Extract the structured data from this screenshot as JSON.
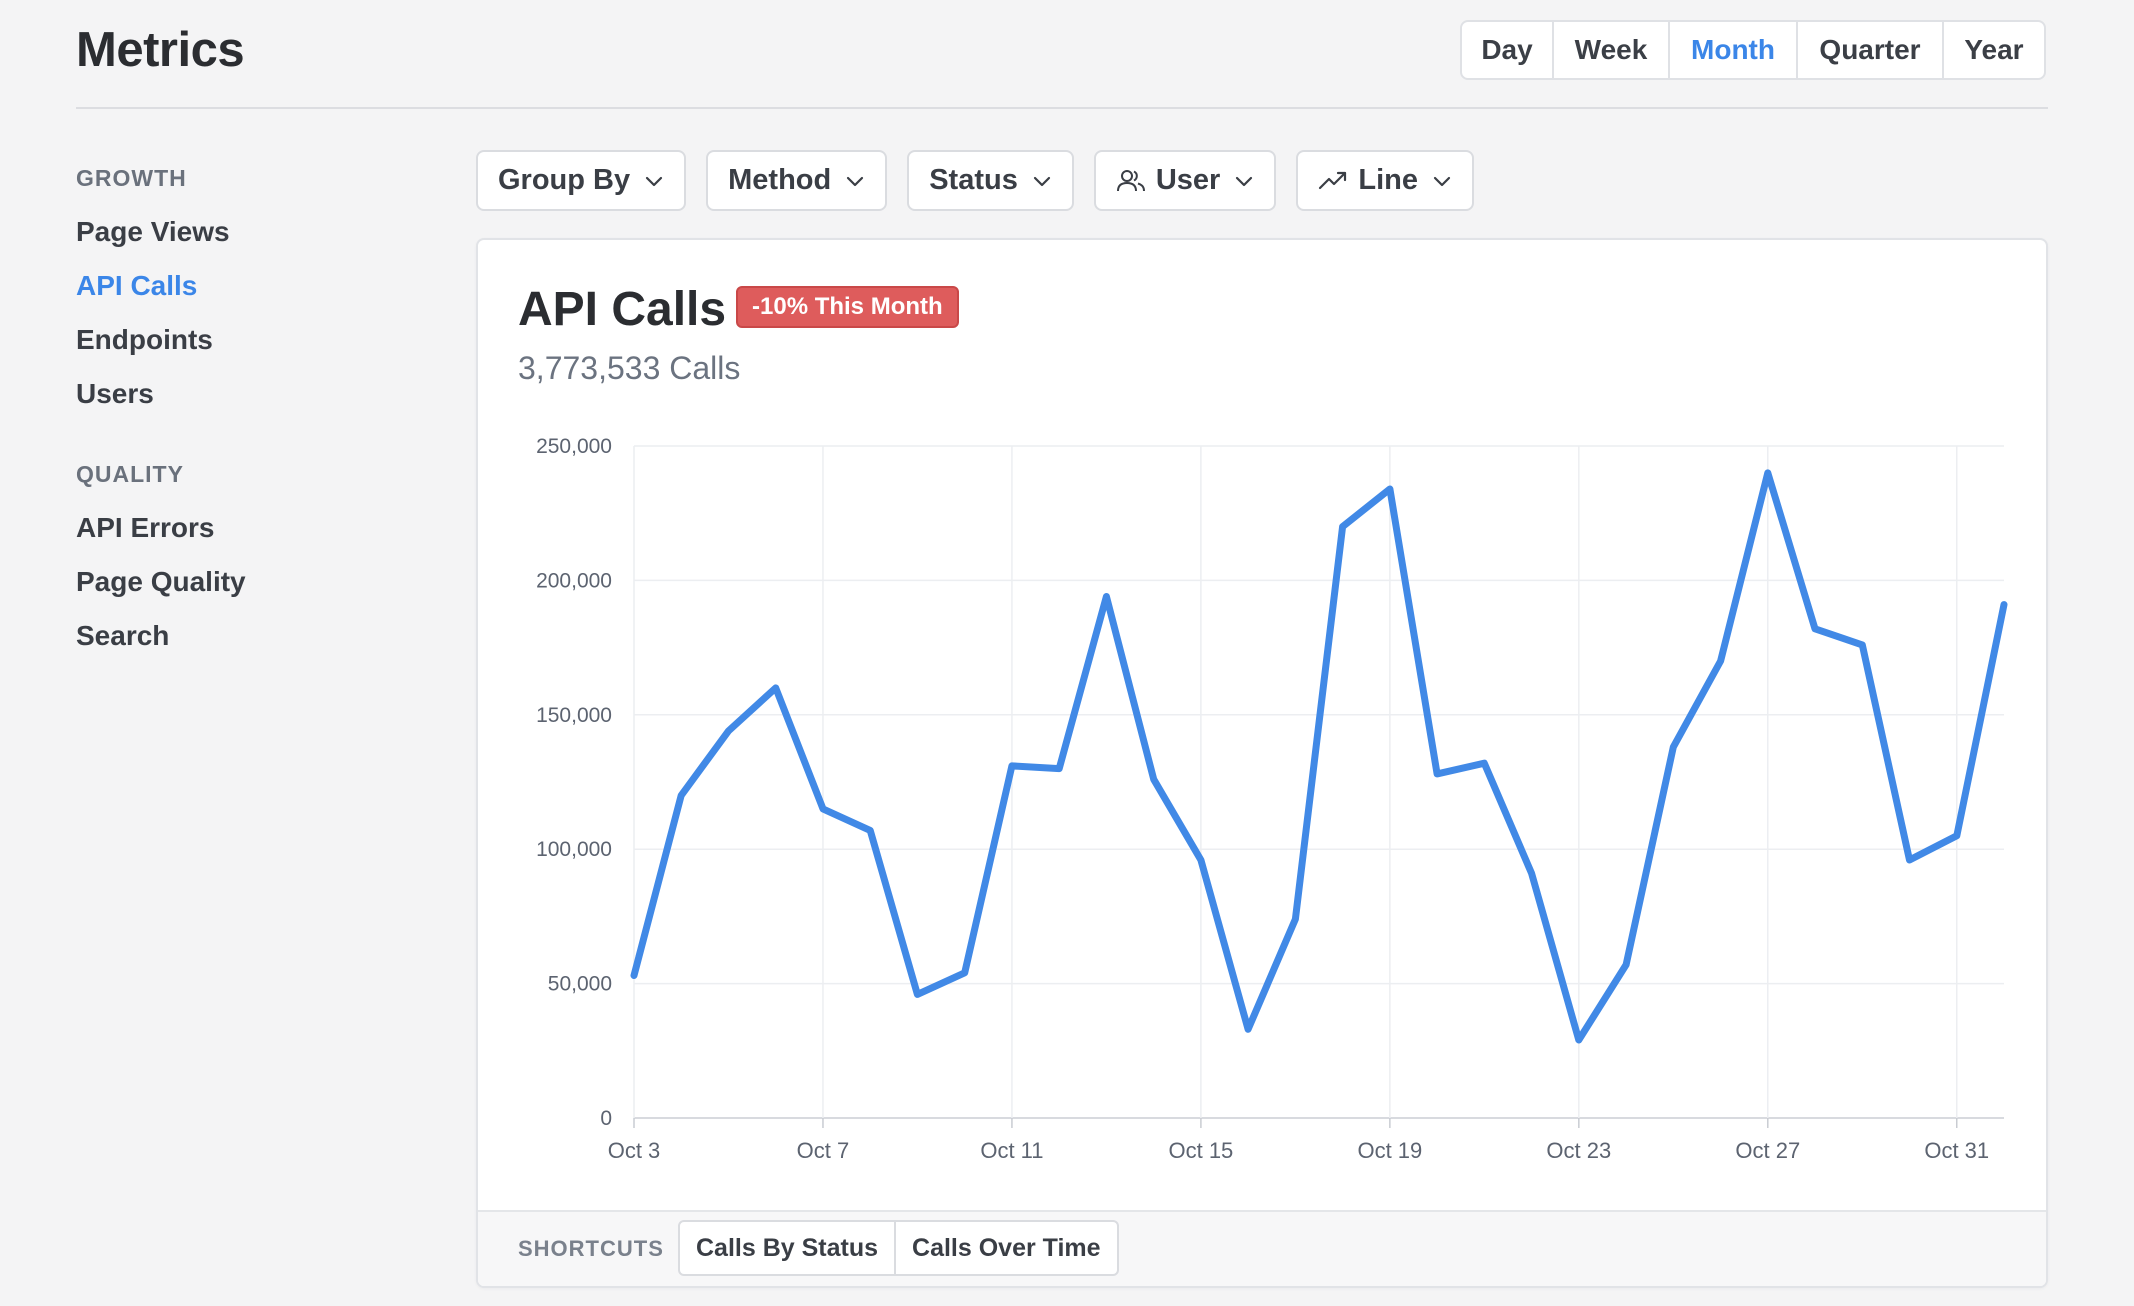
{
  "header": {
    "title": "Metrics",
    "ranges": [
      "Day",
      "Week",
      "Month",
      "Quarter",
      "Year"
    ],
    "active_range": "Month"
  },
  "sidebar": {
    "groups": [
      {
        "title": "GROWTH",
        "items": [
          "Page Views",
          "API Calls",
          "Endpoints",
          "Users"
        ]
      },
      {
        "title": "QUALITY",
        "items": [
          "API Errors",
          "Page Quality",
          "Search"
        ]
      }
    ],
    "active_item": "API Calls"
  },
  "filters": [
    {
      "label": "Group By",
      "icon": ""
    },
    {
      "label": "Method",
      "icon": ""
    },
    {
      "label": "Status",
      "icon": ""
    },
    {
      "label": "User",
      "icon": "users-icon"
    },
    {
      "label": "Line",
      "icon": "trending-up-icon"
    }
  ],
  "card": {
    "title": "API Calls",
    "badge": "-10% This Month",
    "subtitle": "3,773,533 Calls",
    "footer_label": "SHORTCUTS",
    "shortcuts": [
      "Calls By Status",
      "Calls Over Time"
    ]
  },
  "colors": {
    "accent": "#3b86e8",
    "line": "#4189e6",
    "badge": "#de5c5c"
  },
  "chart_data": {
    "type": "line",
    "x": [
      "Oct 3",
      "Oct 4",
      "Oct 5",
      "Oct 6",
      "Oct 7",
      "Oct 8",
      "Oct 9",
      "Oct 10",
      "Oct 11",
      "Oct 12",
      "Oct 13",
      "Oct 14",
      "Oct 15",
      "Oct 16",
      "Oct 17",
      "Oct 18",
      "Oct 19",
      "Oct 20",
      "Oct 21",
      "Oct 22",
      "Oct 23",
      "Oct 24",
      "Oct 25",
      "Oct 26",
      "Oct 27",
      "Oct 28",
      "Oct 29",
      "Oct 30",
      "Oct 31",
      "Nov 1"
    ],
    "x_tick_labels": [
      "Oct 3",
      "Oct 7",
      "Oct 11",
      "Oct 15",
      "Oct 19",
      "Oct 23",
      "Oct 27",
      "Oct 31"
    ],
    "series": [
      {
        "values": [
          53000,
          120000,
          144000,
          160000,
          115000,
          107000,
          46000,
          54000,
          131000,
          130000,
          194000,
          126000,
          96000,
          33000,
          74000,
          220000,
          234000,
          128000,
          132000,
          91000,
          29000,
          57000,
          138000,
          170000,
          240000,
          182000,
          176000,
          96000,
          105000,
          191000
        ]
      }
    ],
    "y_ticks": [
      0,
      50000,
      100000,
      150000,
      200000,
      250000
    ],
    "y_tick_labels": [
      "0",
      "50,000",
      "100,000",
      "150,000",
      "200,000",
      "250,000"
    ],
    "ylim": [
      0,
      250000
    ],
    "xlabel": "",
    "ylabel": "",
    "grid": true,
    "legend": "none"
  }
}
